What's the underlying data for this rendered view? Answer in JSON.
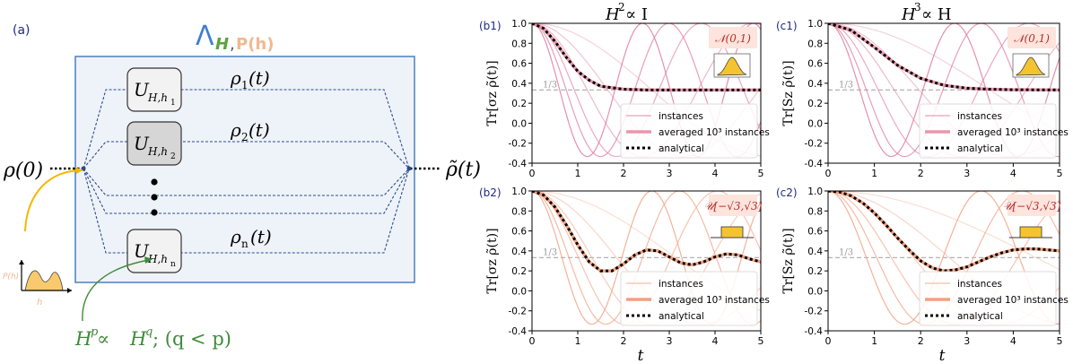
{
  "panel_a": {
    "label": "(a)",
    "lambda_sym": "Λ",
    "lambda_H": "H",
    "lambda_comma": ",",
    "lambda_P": "P(h)",
    "input_state": "ρ(0)",
    "output_state": "ρ̃(t)",
    "dots": "•",
    "unitaries": [
      {
        "U": "U",
        "sub": "H,h",
        "subsub": "1",
        "rho": "ρ",
        "rho_sub": "1",
        "rho_t": "(t)"
      },
      {
        "U": "U",
        "sub": "H,h",
        "subsub": "2",
        "rho": "ρ",
        "rho_sub": "2",
        "rho_t": "(t)"
      },
      {
        "U": "U",
        "sub": "H,h",
        "subsub": "n",
        "rho": "ρ",
        "rho_sub": "n",
        "rho_t": "(t)"
      }
    ],
    "inset_ylabel": "P(h)",
    "inset_xlabel": "h",
    "constraint": "H^p ∝ H^q ; (q < p)",
    "constraint_parts": {
      "H1": "H",
      "p1": "p",
      "prop": " ∝ ",
      "H2": "H",
      "q1": "q",
      "rest": " ; (q < p)"
    }
  },
  "column_titles": {
    "b": {
      "base": "H",
      "exp": "2",
      "rest": " ∝ I"
    },
    "c": {
      "base": "H",
      "exp": "3",
      "rest": " ∝ H"
    }
  },
  "shared_x_label": "t",
  "chart_data": [
    {
      "id": "b1",
      "type": "line",
      "label": "(b1)",
      "ylabel": "Tr[σz ρ̃(t)]",
      "xlim": [
        0,
        5
      ],
      "ylim": [
        -0.4,
        1.0
      ],
      "xticks": [
        "0",
        "1",
        "2",
        "3",
        "4",
        "5"
      ],
      "yticks": [
        "-0.4",
        "-0.2",
        "0.0",
        "0.2",
        "0.4",
        "0.6",
        "0.8",
        "1.0"
      ],
      "reference": {
        "y": 0.3333,
        "label": "1/3"
      },
      "distribution": "𝒩(0,1)",
      "legend": [
        "instances",
        "averaged 10³ instances",
        "analytical"
      ],
      "palette": {
        "instances": "#e07da0",
        "average": "#e8849f",
        "analytical": "#000000"
      },
      "instance_frequencies": [
        0.6,
        0.95,
        1.3,
        1.7,
        2.1,
        2.6
      ],
      "series_names": [
        "instances",
        "averaged 10^3 instances",
        "analytical"
      ],
      "analytical": {
        "x": [
          0,
          0.25,
          0.5,
          0.75,
          1.0,
          1.25,
          1.5,
          2.0,
          2.5,
          3,
          4,
          5
        ],
        "y": [
          1.0,
          0.95,
          0.82,
          0.66,
          0.52,
          0.43,
          0.37,
          0.34,
          0.333,
          0.333,
          0.333,
          0.333
        ]
      }
    },
    {
      "id": "c1",
      "type": "line",
      "label": "(c1)",
      "ylabel": "Tr[Sz ρ̃(t)]",
      "xlim": [
        0,
        5
      ],
      "ylim": [
        -0.4,
        1.0
      ],
      "xticks": [
        "0",
        "1",
        "2",
        "3",
        "4",
        "5"
      ],
      "yticks": [
        "-0.4",
        "-0.2",
        "0.0",
        "0.2",
        "0.4",
        "0.6",
        "0.8",
        "1.0"
      ],
      "reference": {
        "y": 0.3333,
        "label": "1/3"
      },
      "distribution": "𝒩(0,1)",
      "legend": [
        "instances",
        "averaged 10³ instances",
        "analytical"
      ],
      "palette": {
        "instances": "#e07da0",
        "average": "#e8849f",
        "analytical": "#000000"
      },
      "instance_frequencies": [
        0.45,
        0.8,
        1.1,
        1.45,
        1.9,
        2.3
      ],
      "series_names": [
        "instances",
        "averaged 10^3 instances",
        "analytical"
      ],
      "analytical": {
        "x": [
          0,
          0.5,
          1.0,
          1.5,
          2.0,
          2.5,
          3.0,
          3.5,
          4,
          5
        ],
        "y": [
          1.0,
          0.93,
          0.76,
          0.58,
          0.45,
          0.38,
          0.35,
          0.34,
          0.335,
          0.333
        ]
      }
    },
    {
      "id": "b2",
      "type": "line",
      "label": "(b2)",
      "ylabel": "Tr[σz ρ̃(t)]",
      "xlim": [
        0,
        5
      ],
      "ylim": [
        -0.4,
        1.0
      ],
      "xticks": [
        "0",
        "1",
        "2",
        "3",
        "4",
        "5"
      ],
      "yticks": [
        "-0.4",
        "-0.2",
        "0.0",
        "0.2",
        "0.4",
        "0.6",
        "0.8",
        "1.0"
      ],
      "reference": {
        "y": 0.3333,
        "label": "1/3"
      },
      "distribution": "𝒰[−√3,√3]",
      "legend": [
        "instances",
        "averaged 10³ instances",
        "analytical"
      ],
      "palette": {
        "instances": "#f2a487",
        "average": "#f0906b",
        "analytical": "#000000"
      },
      "instance_frequencies": [
        0.5,
        0.85,
        1.2,
        1.55,
        1.95,
        2.4
      ],
      "series_names": [
        "instances",
        "averaged 10^3 instances",
        "analytical"
      ],
      "analytical": {
        "x": [
          0,
          0.25,
          0.5,
          0.75,
          1.0,
          1.25,
          1.5,
          1.75,
          2.0,
          2.25,
          2.5,
          2.75,
          3.0,
          3.25,
          3.5,
          3.75,
          4.0,
          4.25,
          4.5,
          4.75,
          5.0
        ],
        "y": [
          1.0,
          0.96,
          0.84,
          0.66,
          0.46,
          0.29,
          0.2,
          0.2,
          0.27,
          0.36,
          0.41,
          0.4,
          0.34,
          0.28,
          0.26,
          0.29,
          0.34,
          0.37,
          0.36,
          0.32,
          0.29
        ]
      }
    },
    {
      "id": "c2",
      "type": "line",
      "label": "(c2)",
      "ylabel": "Tr[Sz ρ̃(t)]",
      "xlim": [
        0,
        5
      ],
      "ylim": [
        -0.4,
        1.0
      ],
      "xticks": [
        "0",
        "1",
        "2",
        "3",
        "4",
        "5"
      ],
      "yticks": [
        "-0.4",
        "-0.2",
        "0.0",
        "0.2",
        "0.4",
        "0.6",
        "0.8",
        "1.0"
      ],
      "reference": {
        "y": 0.3333,
        "label": "1/3"
      },
      "distribution": "𝒰[−√3,√3]",
      "legend": [
        "instances",
        "averaged 10³ instances",
        "analytical"
      ],
      "palette": {
        "instances": "#f2a487",
        "average": "#f0906b",
        "analytical": "#000000"
      },
      "instance_frequencies": [
        0.35,
        0.6,
        0.85,
        1.15,
        1.5,
        1.9
      ],
      "series_names": [
        "instances",
        "averaged 10^3 instances",
        "analytical"
      ],
      "analytical": {
        "x": [
          0,
          0.25,
          0.5,
          0.75,
          1.0,
          1.25,
          1.5,
          1.75,
          2.0,
          2.25,
          2.5,
          2.75,
          3.0,
          3.25,
          3.5,
          3.75,
          4.0,
          4.25,
          4.5,
          4.75,
          5.0
        ],
        "y": [
          1.0,
          0.99,
          0.95,
          0.88,
          0.78,
          0.66,
          0.53,
          0.41,
          0.3,
          0.23,
          0.2,
          0.21,
          0.24,
          0.29,
          0.34,
          0.38,
          0.41,
          0.42,
          0.42,
          0.41,
          0.4
        ]
      }
    }
  ]
}
